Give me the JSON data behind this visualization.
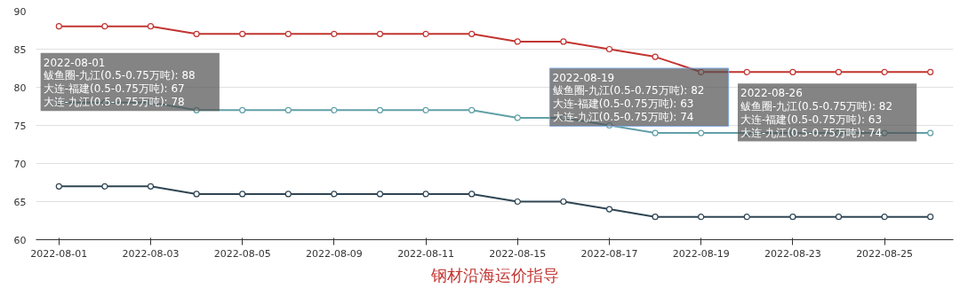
{
  "chart_data": {
    "type": "line",
    "title": "钢材沿海运价指导",
    "categories": [
      "2022-08-01",
      null,
      "2022-08-03",
      null,
      "2022-08-05",
      null,
      "2022-08-09",
      null,
      "2022-08-11",
      null,
      "2022-08-15",
      null,
      "2022-08-17",
      null,
      "2022-08-19",
      null,
      "2022-08-23",
      null,
      "2022-08-25",
      null
    ],
    "series": [
      {
        "color": "#c23531",
        "values": [
          88,
          88,
          88,
          87,
          87,
          87,
          87,
          87,
          87,
          87,
          86,
          86,
          85,
          84,
          82,
          82,
          82,
          82,
          82,
          82
        ]
      },
      {
        "color": "#2f4554",
        "values": [
          67,
          67,
          67,
          66,
          66,
          66,
          66,
          66,
          66,
          66,
          65,
          65,
          64,
          63,
          63,
          63,
          63,
          63,
          63,
          63
        ]
      },
      {
        "color": "#61a0a8",
        "values": [
          78,
          78,
          78,
          77,
          77,
          77,
          77,
          77,
          77,
          77,
          76,
          76,
          75,
          74,
          74,
          74,
          74,
          74,
          74,
          74
        ]
      }
    ],
    "ylim": [
      60,
      90
    ],
    "yticks": [
      60,
      65,
      70,
      75,
      80,
      85,
      90
    ],
    "grid": "y",
    "marker": "circle",
    "line_style": "solid",
    "annotations": [
      "2022-08-01\n鲅鱼圈-九江(0.5-0.75万吨): 88\n大连-福建(0.5-0.75万吨): 67\n大连-九江(0.5-0.75万吨): 78",
      "2022-08-19\n鲅鱼圈-九江(0.5-0.75万吨): 82\n大连-福建(0.5-0.75万吨): 63\n大连-九江(0.5-0.75万吨): 74",
      "2022-08-26\n鲅鱼圈-九江(0.5-0.75万吨): 82\n大连-福建(0.5-0.75万吨): 63\n大连-九江(0.5-0.75万吨): 74"
    ]
  }
}
